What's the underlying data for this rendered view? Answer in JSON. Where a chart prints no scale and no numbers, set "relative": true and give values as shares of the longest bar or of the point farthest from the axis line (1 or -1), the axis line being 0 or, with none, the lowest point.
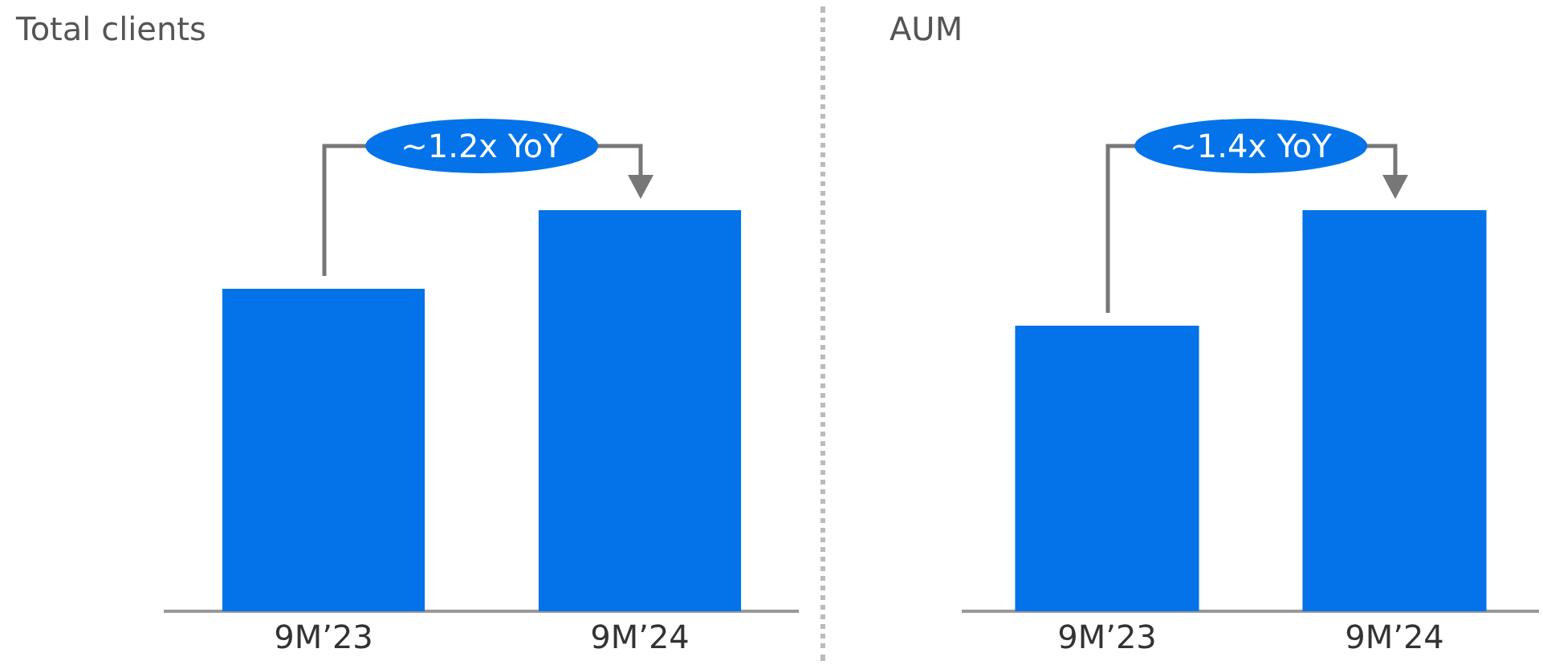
{
  "chart_data": [
    {
      "type": "bar",
      "title": "Total clients",
      "categories": [
        "9M’23",
        "9M’24"
      ],
      "values": [
        0.804,
        1
      ],
      "relative": true,
      "color": "#0473ea",
      "annotations": [
        "~1.2x YoY"
      ]
    },
    {
      "type": "bar",
      "title": "AUM",
      "categories": [
        "9M’23",
        "9M’24"
      ],
      "values": [
        0.712,
        1
      ],
      "relative": true,
      "color": "#0473ea",
      "annotations": [
        "~1.4x YoY"
      ]
    }
  ]
}
